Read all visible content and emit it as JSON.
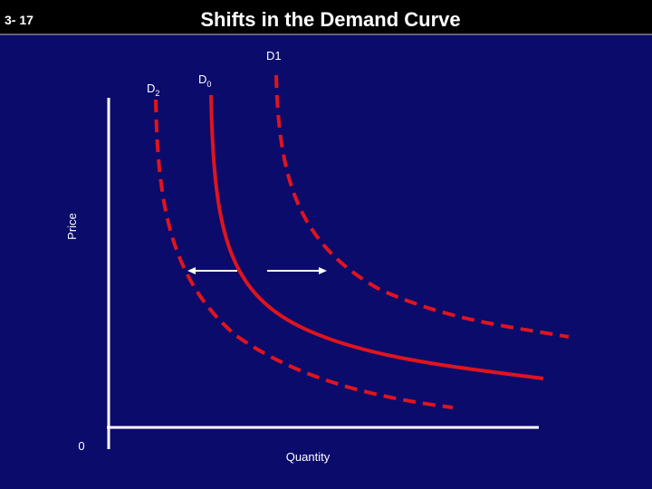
{
  "slide_number": "3- 17",
  "title": "Shifts in the Demand Curve",
  "curves": [
    {
      "base": "D",
      "sub": "0"
    },
    {
      "base": "D1"
    },
    {
      "base": "D",
      "sub": "2"
    }
  ],
  "y_axis_label": "Price",
  "x_axis_label": "Quantity",
  "origin_label": "0"
}
